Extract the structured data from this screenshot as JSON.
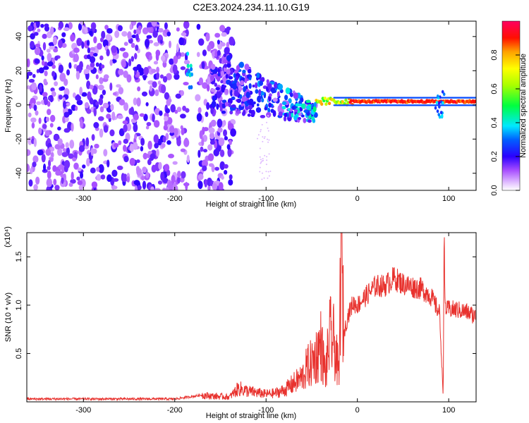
{
  "title": "C2E3.2024.234.11.10.G19",
  "top": {
    "xlabel": "Height of straight line (km)",
    "ylabel": "Frequency (Hz)",
    "colorbar_label": "Normalized spectral amplitude"
  },
  "bottom": {
    "xlabel": "Height of straight line (km)",
    "ylabel": "SNR (10 * v/v)",
    "scale_label": "(x10⁴)"
  },
  "chart_data": [
    {
      "type": "heatmap",
      "xlim": [
        -362,
        130
      ],
      "ylim": [
        -50,
        49
      ],
      "xlabel": "Height of straight line (km)",
      "ylabel": "Frequency (Hz)",
      "x_ticks": [
        -300,
        -200,
        -100,
        0,
        100
      ],
      "x_tick_labels": [
        "-300",
        "-200",
        "-100",
        "0",
        "100"
      ],
      "y_ticks": [
        -40,
        -20,
        0,
        20,
        40
      ],
      "y_tick_labels": [
        "-40",
        "-20",
        "0",
        "20",
        "40"
      ],
      "colorbar": {
        "range": [
          0,
          1
        ],
        "ticks": [
          0.0,
          0.2,
          0.4,
          0.6,
          0.8
        ],
        "tick_labels": [
          "0.0",
          "0.2",
          "0.4",
          "0.6",
          "0.8"
        ],
        "colormap": "rainbow (violet → blue → cyan → green → yellow → red)"
      },
      "features": {
        "noise_region_x": [
          -362,
          -160
        ],
        "gap_x": [
          -185,
          -175
        ],
        "carrier_line": {
          "start_x": -45,
          "end_x": 130,
          "frequency": 2,
          "amplitude": 0.95
        },
        "transition_band": {
          "x": [
            -160,
            -45
          ],
          "frequency_from": 15,
          "frequency_to": -5
        }
      }
    },
    {
      "type": "line",
      "xlim": [
        -362,
        130
      ],
      "ylim": [
        0,
        17500
      ],
      "xlabel": "Height of straight line (km)",
      "ylabel": "SNR (10 * v/v)",
      "x_ticks": [
        -300,
        -200,
        -100,
        0,
        100
      ],
      "x_tick_labels": [
        "-300",
        "-200",
        "-100",
        "0",
        "100"
      ],
      "y_ticks": [
        5000,
        10000,
        15000
      ],
      "y_tick_labels": [
        "0.5",
        "1.0",
        "1.5"
      ],
      "series_color": "#e8322e",
      "x": [
        -362,
        -300,
        -200,
        -170,
        -160,
        -140,
        -130,
        -120,
        -100,
        -90,
        -80,
        -70,
        -60,
        -55,
        -50,
        -45,
        -40,
        -35,
        -30,
        -25,
        -20,
        -18,
        -15,
        -10,
        -5,
        0,
        10,
        20,
        30,
        40,
        50,
        60,
        70,
        80,
        90,
        94,
        95,
        96,
        98,
        100,
        110,
        120,
        130
      ],
      "y": [
        300,
        300,
        300,
        700,
        600,
        500,
        1400,
        1100,
        800,
        900,
        1200,
        1900,
        2600,
        3600,
        4000,
        4800,
        6000,
        2800,
        6800,
        6000,
        2500,
        17500,
        7000,
        9000,
        10200,
        10000,
        11000,
        12000,
        12000,
        12800,
        12200,
        11900,
        11700,
        11000,
        9200,
        500,
        17000,
        10000,
        9500,
        9600,
        9500,
        9300,
        8800
      ]
    }
  ]
}
